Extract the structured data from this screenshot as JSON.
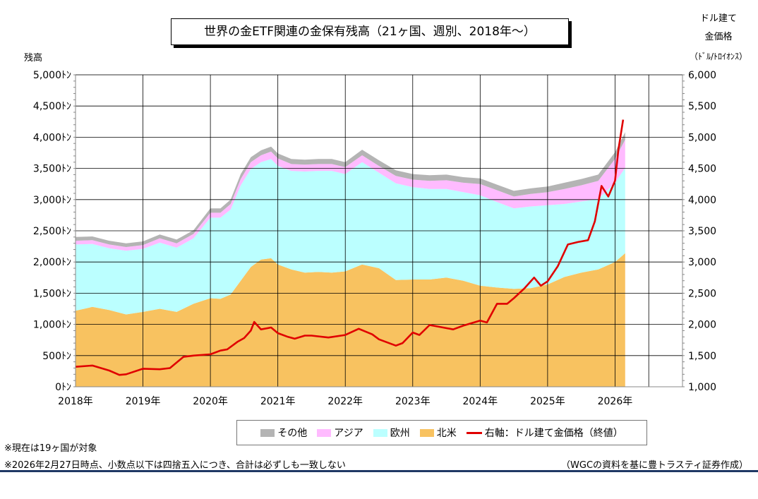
{
  "title": "世界の金ETF関連の金保有残高（21ヶ国、週別、2018年～）",
  "left_axis_title": "残高",
  "right_axis_title_lines": [
    "ドル建て",
    "金価格",
    "（ﾄﾞﾙ/ﾄﾛｲｵﾝｽ）"
  ],
  "notes": [
    "※現在は19ヶ国が対象",
    "※2026年2月27日時点、小数点以下は四捨五入につき、合計は必ずしも一致しない"
  ],
  "source": "（WGCの資料を基に豊トラスティ証券作成）",
  "colors": {
    "other": "#b4b4b4",
    "asia": "#ffbbff",
    "europe": "#bbffff",
    "north_america": "#f8c260",
    "gold_price": "#e00000",
    "grid": "#000000",
    "rule": "#1f3864"
  },
  "legend": [
    {
      "key": "other",
      "label": "その他",
      "kind": "area"
    },
    {
      "key": "asia",
      "label": "アジア",
      "kind": "area"
    },
    {
      "key": "europe",
      "label": "欧州",
      "kind": "area"
    },
    {
      "key": "north_america",
      "label": "北米",
      "kind": "area"
    },
    {
      "key": "gold_price",
      "label": "右軸：ドル建て金価格（終値）",
      "kind": "line"
    }
  ],
  "chart_data": {
    "type": "area",
    "title": "世界の金ETF関連の金保有残高（21ヶ国、週別、2018年～）",
    "x_unit": "year (decimal)",
    "x_ticks": [
      2018,
      2019,
      2020,
      2021,
      2022,
      2023,
      2024,
      2025,
      2026
    ],
    "x_tick_labels": [
      "2018年",
      "2019年",
      "2020年",
      "2021年",
      "2022年",
      "2023年",
      "2024年",
      "2025年",
      "2026年"
    ],
    "xlim": [
      2018,
      2027
    ],
    "y_left": {
      "label": "残高",
      "lim": [
        0,
        5000
      ],
      "ticks": [
        0,
        500,
        1000,
        1500,
        2000,
        2500,
        3000,
        3500,
        4000,
        4500,
        5000
      ],
      "tick_labels": [
        "0ﾄﾝ",
        "500ﾄﾝ",
        "1,000ﾄﾝ",
        "1,500ﾄﾝ",
        "2,000ﾄﾝ",
        "2,500ﾄﾝ",
        "3,000ﾄﾝ",
        "3,500ﾄﾝ",
        "4,000ﾄﾝ",
        "4,500ﾄﾝ",
        "5,000ﾄﾝ"
      ]
    },
    "y_right": {
      "label": "ドル建て金価格（ﾄﾞﾙ/ﾄﾛｲｵﾝｽ）",
      "lim": [
        1000,
        6000
      ],
      "ticks": [
        1000,
        1500,
        2000,
        2500,
        3000,
        3500,
        4000,
        4500,
        5000,
        5500,
        6000
      ],
      "tick_labels": [
        "1,000",
        "1,500",
        "2,000",
        "2,500",
        "3,000",
        "3,500",
        "4,000",
        "4,500",
        "5,000",
        "5,500",
        "6,000"
      ]
    },
    "grid": true,
    "x": [
      2018.0,
      2018.25,
      2018.5,
      2018.75,
      2019.0,
      2019.25,
      2019.5,
      2019.75,
      2020.0,
      2020.15,
      2020.3,
      2020.45,
      2020.6,
      2020.75,
      2020.9,
      2021.0,
      2021.2,
      2021.4,
      2021.6,
      2021.8,
      2022.0,
      2022.25,
      2022.5,
      2022.75,
      2023.0,
      2023.25,
      2023.5,
      2023.75,
      2024.0,
      2024.25,
      2024.5,
      2024.75,
      2025.0,
      2025.25,
      2025.5,
      2025.75,
      2026.0,
      2026.15
    ],
    "series": [
      {
        "name": "北米",
        "key": "north_america",
        "axis": "left",
        "values": [
          1220,
          1280,
          1230,
          1160,
          1200,
          1250,
          1200,
          1330,
          1420,
          1410,
          1480,
          1700,
          1920,
          2040,
          2060,
          1960,
          1880,
          1830,
          1840,
          1830,
          1850,
          1960,
          1900,
          1710,
          1720,
          1720,
          1750,
          1700,
          1620,
          1590,
          1570,
          1580,
          1640,
          1760,
          1830,
          1880,
          2000,
          2140
        ]
      },
      {
        "name": "欧州",
        "key": "europe",
        "axis": "left",
        "values": [
          1060,
          1010,
          990,
          1020,
          1010,
          1060,
          1030,
          1050,
          1290,
          1300,
          1360,
          1530,
          1570,
          1560,
          1590,
          1580,
          1580,
          1620,
          1620,
          1630,
          1560,
          1640,
          1530,
          1550,
          1480,
          1450,
          1420,
          1420,
          1450,
          1370,
          1290,
          1310,
          1270,
          1170,
          1140,
          1130,
          1270,
          1370
        ]
      },
      {
        "name": "アジア",
        "key": "asia",
        "axis": "left",
        "values": [
          60,
          60,
          60,
          60,
          60,
          70,
          70,
          70,
          80,
          80,
          90,
          100,
          110,
          110,
          120,
          120,
          110,
          110,
          110,
          110,
          110,
          110,
          110,
          120,
          120,
          130,
          140,
          150,
          180,
          190,
          190,
          200,
          210,
          240,
          260,
          290,
          380,
          450
        ]
      },
      {
        "name": "その他",
        "key": "other",
        "axis": "left",
        "values": [
          60,
          60,
          60,
          60,
          60,
          60,
          60,
          60,
          70,
          70,
          70,
          80,
          80,
          80,
          80,
          80,
          80,
          80,
          80,
          80,
          80,
          90,
          90,
          90,
          90,
          90,
          90,
          90,
          90,
          90,
          90,
          90,
          90,
          100,
          100,
          100,
          110,
          120
        ]
      },
      {
        "name": "右軸：ドル建て金価格（終値）",
        "key": "gold_price",
        "axis": "right",
        "x": [
          2018.0,
          2018.25,
          2018.5,
          2018.65,
          2018.75,
          2019.0,
          2019.25,
          2019.4,
          2019.6,
          2019.75,
          2020.0,
          2020.15,
          2020.25,
          2020.4,
          2020.5,
          2020.6,
          2020.65,
          2020.75,
          2020.9,
          2021.0,
          2021.15,
          2021.25,
          2021.4,
          2021.5,
          2021.75,
          2022.0,
          2022.2,
          2022.4,
          2022.5,
          2022.75,
          2022.85,
          2023.0,
          2023.1,
          2023.25,
          2023.4,
          2023.6,
          2023.75,
          2024.0,
          2024.1,
          2024.25,
          2024.4,
          2024.5,
          2024.65,
          2024.8,
          2024.9,
          2025.0,
          2025.15,
          2025.3,
          2025.45,
          2025.6,
          2025.7,
          2025.8,
          2025.9,
          2026.0,
          2026.05,
          2026.12
        ],
        "values": [
          1320,
          1340,
          1260,
          1190,
          1200,
          1290,
          1280,
          1300,
          1480,
          1500,
          1520,
          1580,
          1600,
          1720,
          1780,
          1900,
          2040,
          1920,
          1950,
          1860,
          1800,
          1770,
          1820,
          1820,
          1790,
          1830,
          1930,
          1840,
          1760,
          1660,
          1700,
          1870,
          1830,
          1990,
          1960,
          1920,
          1980,
          2060,
          2030,
          2330,
          2330,
          2420,
          2570,
          2750,
          2620,
          2690,
          2930,
          3280,
          3320,
          3350,
          3650,
          4220,
          4050,
          4300,
          4800,
          5280
        ]
      }
    ]
  }
}
